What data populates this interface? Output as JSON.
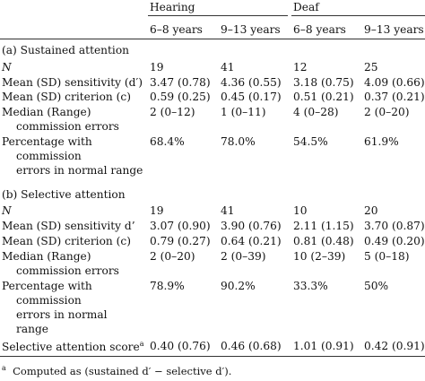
{
  "header": {
    "groups": [
      {
        "label": "Hearing"
      },
      {
        "label": "Deaf"
      }
    ],
    "age_columns": [
      {
        "label": "6–8 years"
      },
      {
        "label": "9–13 years"
      },
      {
        "label": "6–8 years"
      },
      {
        "label": "9–13 years"
      }
    ]
  },
  "sections": [
    {
      "title": "(a) Sustained attention",
      "rows": [
        {
          "label_lines": [
            "N"
          ],
          "italic": true,
          "values": [
            "19",
            "41",
            "12",
            "25"
          ]
        },
        {
          "label_lines": [
            "Mean (SD) sensitivity (d′)"
          ],
          "values": [
            "3.47 (0.78)",
            "4.36 (0.55)",
            "3.18 (0.75)",
            "4.09 (0.66)"
          ]
        },
        {
          "label_lines": [
            "Mean (SD) criterion (c)"
          ],
          "values": [
            "0.59 (0.25)",
            "0.45 (0.17)",
            "0.51 (0.21)",
            "0.37 (0.21)"
          ]
        },
        {
          "label_lines": [
            "Median (Range)",
            "commission errors"
          ],
          "values": [
            "2 (0–12)",
            "1 (0–11)",
            "4 (0–28)",
            "2 (0–20)"
          ]
        },
        {
          "label_lines": [
            "Percentage with",
            "commission",
            "errors in normal range"
          ],
          "values": [
            "68.4%",
            "78.0%",
            "54.5%",
            "61.9%"
          ]
        }
      ]
    },
    {
      "title": "(b) Selective attention",
      "rows": [
        {
          "label_lines": [
            "N"
          ],
          "italic": true,
          "values": [
            "19",
            "41",
            "10",
            "20"
          ]
        },
        {
          "label_lines": [
            "Mean (SD) sensitivity d’"
          ],
          "values": [
            "3.07 (0.90)",
            "3.90 (0.76)",
            "2.11 (1.15)",
            "3.70 (0.87)"
          ]
        },
        {
          "label_lines": [
            "Mean (SD) criterion (c)"
          ],
          "values": [
            "0.79 (0.27)",
            "0.64 (0.21)",
            "0.81 (0.48)",
            "0.49 (0.20)"
          ]
        },
        {
          "label_lines": [
            "Median (Range)",
            "commission errors"
          ],
          "values": [
            "2 (0–20)",
            "2 (0–39)",
            "10 (2–39)",
            "5 (0–18)"
          ]
        },
        {
          "label_lines": [
            "Percentage with",
            "commission",
            "errors in normal",
            "range"
          ],
          "values": [
            "78.9%",
            "90.2%",
            "33.3%",
            "50%"
          ]
        }
      ]
    }
  ],
  "score_row": {
    "label": "Selective attention score",
    "marker": "a",
    "values": [
      "0.40 (0.76)",
      "0.46 (0.68)",
      "1.01 (0.91)",
      "0.42 (0.91)"
    ]
  },
  "footnote": {
    "marker": "a",
    "text": "Computed as (sustained d′ − selective d′)."
  }
}
